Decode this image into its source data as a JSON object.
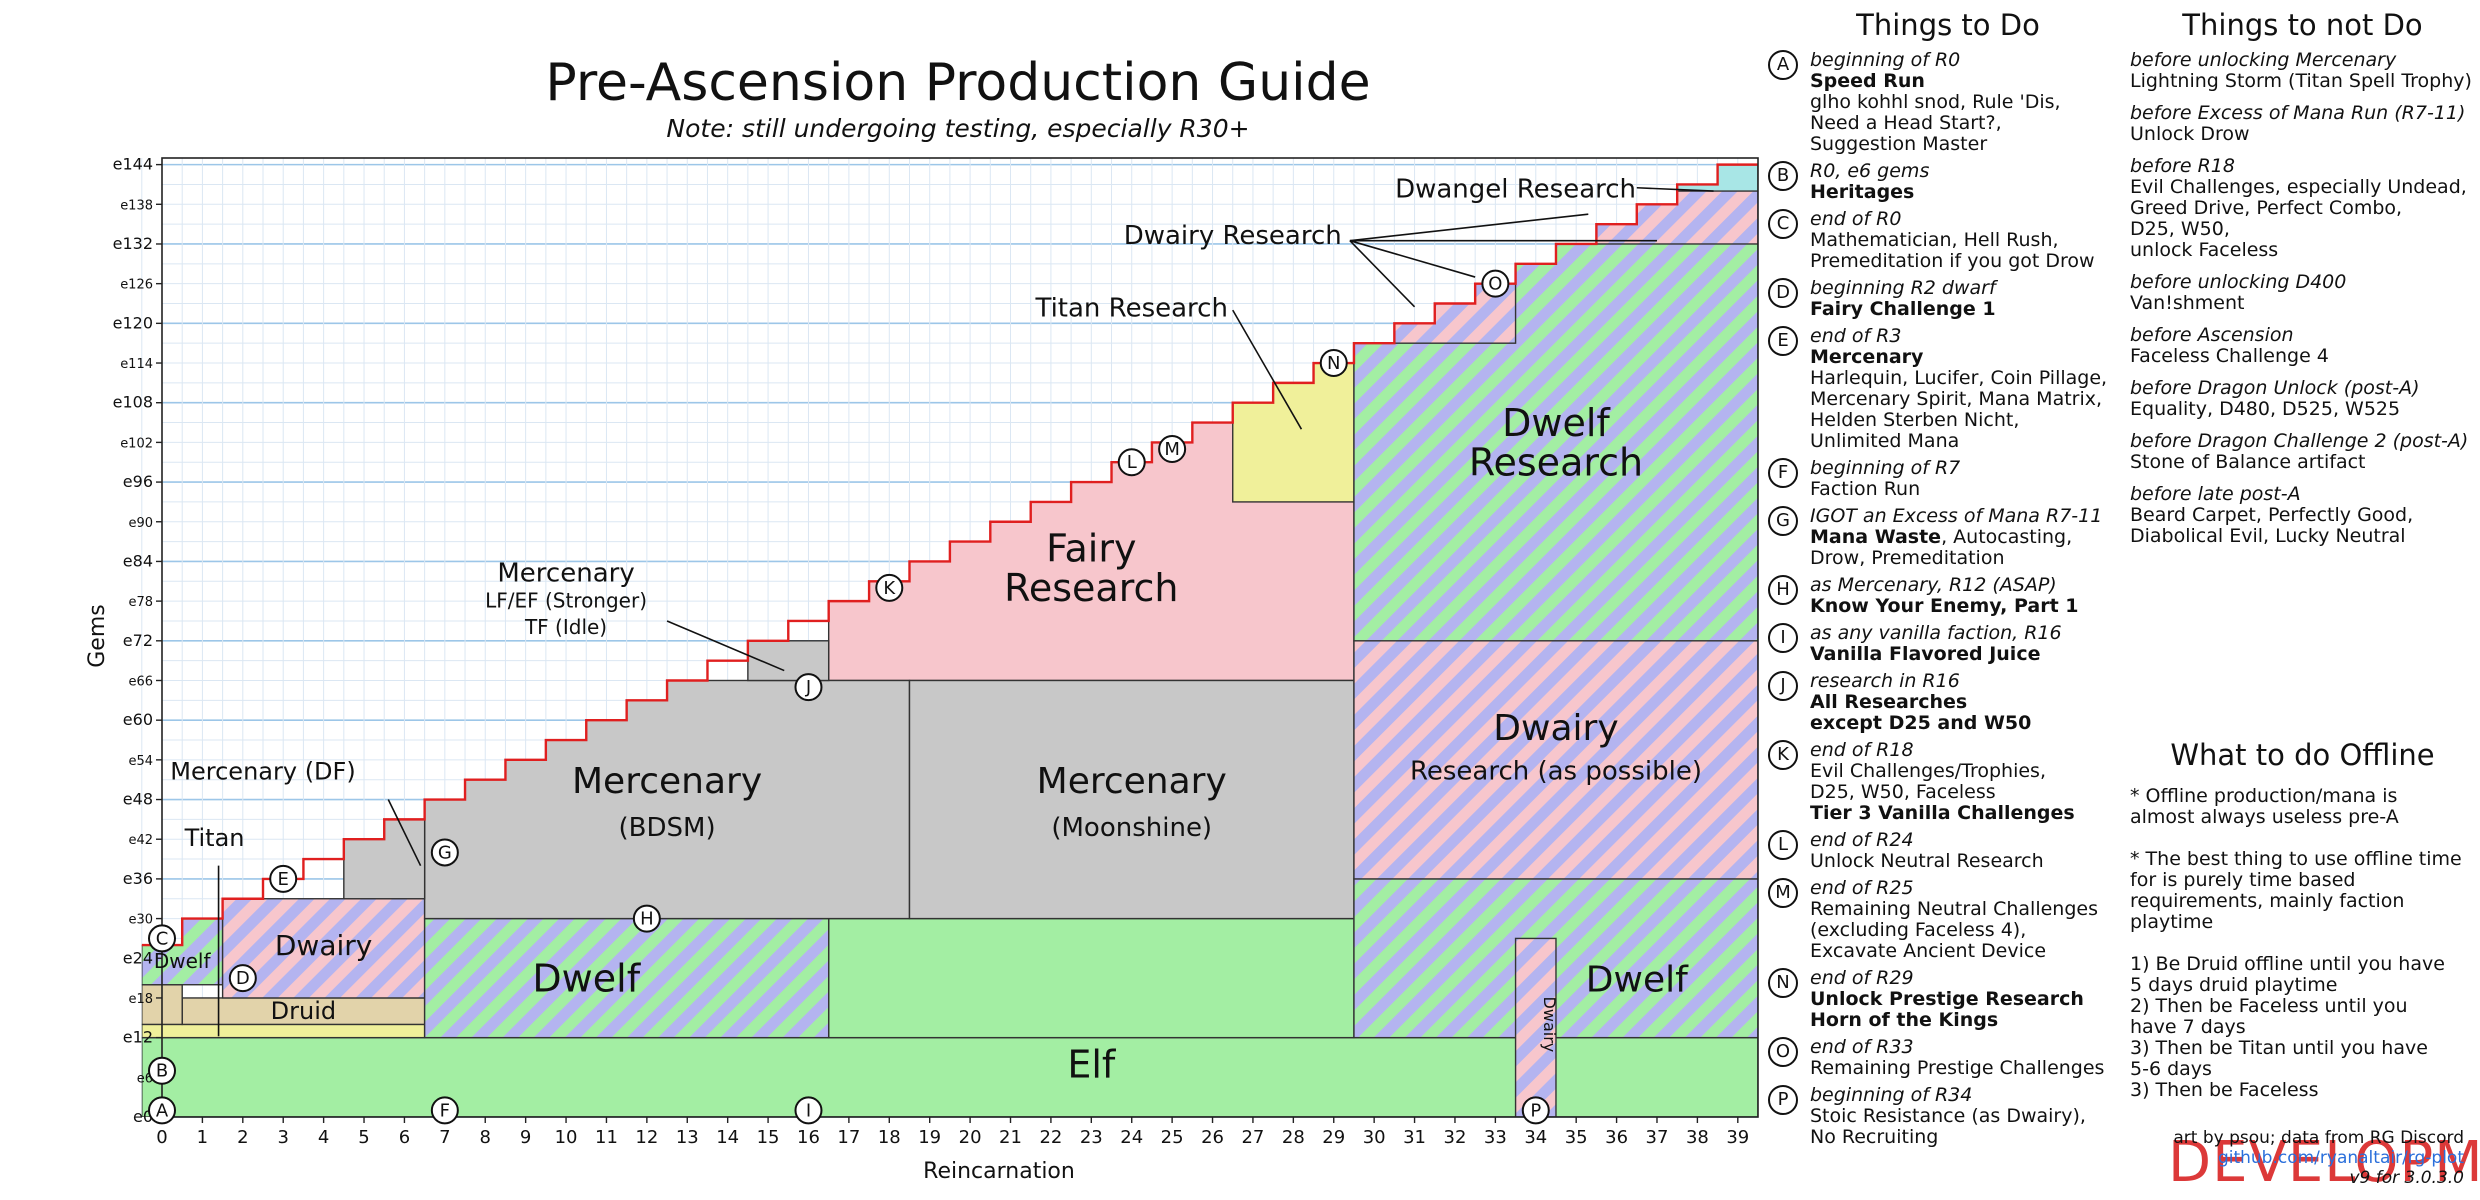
{
  "colors": {
    "elf": "#a3eea3",
    "dwelf_a": "#a3eea3",
    "dwelf_b": "#b4b4f0",
    "dwairy_a": "#f7c6cc",
    "dwairy_b": "#b4b4f0",
    "mercenary": "#c8c8c8",
    "fairy": "#f7c6cc",
    "titan": "#f0f09a",
    "druid": "#e2d3aa",
    "dwangel": "#a8e6e6",
    "step_line": "#e01f1f",
    "grid_major": "#9cc6e8",
    "grid_minor": "#dbe7f3",
    "dev_stamp": "#d81e1e",
    "link": "#2a6fdb"
  },
  "chart_data": {
    "type": "area",
    "title": "Pre-Ascension Production Guide",
    "subtitle": "Note: still undergoing testing, especially R30+",
    "xlabel": "Reincarnation",
    "ylabel": "Gems",
    "xlim": [
      0,
      39.5
    ],
    "ylim": [
      0,
      145
    ],
    "x_ticks": [
      0,
      1,
      2,
      3,
      4,
      5,
      6,
      7,
      8,
      9,
      10,
      11,
      12,
      13,
      14,
      15,
      16,
      17,
      18,
      19,
      20,
      21,
      22,
      23,
      24,
      25,
      26,
      27,
      28,
      29,
      30,
      31,
      32,
      33,
      34,
      35,
      36,
      37,
      38,
      39
    ],
    "y_ticks": [
      {
        "v": 0,
        "label": "e0",
        "major": true
      },
      {
        "v": 6,
        "label": "e6",
        "major": false
      },
      {
        "v": 12,
        "label": "e12",
        "major": true
      },
      {
        "v": 18,
        "label": "e18",
        "major": false
      },
      {
        "v": 24,
        "label": "e24",
        "major": true
      },
      {
        "v": 30,
        "label": "e30",
        "major": false
      },
      {
        "v": 36,
        "label": "e36",
        "major": true
      },
      {
        "v": 42,
        "label": "e42",
        "major": false
      },
      {
        "v": 48,
        "label": "e48",
        "major": true
      },
      {
        "v": 54,
        "label": "e54",
        "major": false
      },
      {
        "v": 60,
        "label": "e60",
        "major": true
      },
      {
        "v": 66,
        "label": "e66",
        "major": false
      },
      {
        "v": 72,
        "label": "e72",
        "major": true
      },
      {
        "v": 78,
        "label": "e78",
        "major": false
      },
      {
        "v": 84,
        "label": "e84",
        "major": true
      },
      {
        "v": 90,
        "label": "e90",
        "major": false
      },
      {
        "v": 96,
        "label": "e96",
        "major": true
      },
      {
        "v": 102,
        "label": "e102",
        "major": false
      },
      {
        "v": 108,
        "label": "e108",
        "major": true
      },
      {
        "v": 114,
        "label": "e114",
        "major": false
      },
      {
        "v": 120,
        "label": "e120",
        "major": true
      },
      {
        "v": 126,
        "label": "e126",
        "major": false
      },
      {
        "v": 132,
        "label": "e132",
        "major": true
      },
      {
        "v": 138,
        "label": "e138",
        "major": false
      },
      {
        "v": 144,
        "label": "e144",
        "major": true
      }
    ],
    "grid": true,
    "max_gems_step": [
      [
        -0.5,
        26
      ],
      [
        0.5,
        30
      ],
      [
        1.5,
        33
      ],
      [
        2.5,
        36
      ],
      [
        3.5,
        39
      ],
      [
        4.5,
        42
      ],
      [
        5.5,
        45
      ],
      [
        6.5,
        48
      ],
      [
        7.5,
        51
      ],
      [
        8.5,
        54
      ],
      [
        9.5,
        57
      ],
      [
        10.5,
        60
      ],
      [
        11.5,
        63
      ],
      [
        12.5,
        66
      ],
      [
        13.5,
        69
      ],
      [
        14.5,
        72
      ],
      [
        15.5,
        75
      ],
      [
        16.5,
        78
      ],
      [
        17.5,
        81
      ],
      [
        18.5,
        84
      ],
      [
        19.5,
        87
      ],
      [
        20.5,
        90
      ],
      [
        21.5,
        93
      ],
      [
        22.5,
        96
      ],
      [
        23.5,
        99
      ],
      [
        24.5,
        102
      ],
      [
        25.5,
        105
      ],
      [
        26.5,
        108
      ],
      [
        27.5,
        111
      ],
      [
        28.5,
        114
      ],
      [
        29.5,
        117
      ],
      [
        30.5,
        120
      ],
      [
        31.5,
        123
      ],
      [
        32.5,
        126
      ],
      [
        33.5,
        129
      ],
      [
        34.5,
        132
      ],
      [
        35.5,
        135
      ],
      [
        36.5,
        138
      ],
      [
        37.5,
        141
      ],
      [
        38.5,
        144
      ],
      [
        39.5,
        144
      ]
    ],
    "regions": [
      {
        "id": "elf",
        "name": "Elf",
        "color": "elf",
        "x": [
          -0.5,
          39.5
        ],
        "y": [
          0,
          12
        ]
      },
      {
        "id": "elf-mid",
        "name": "",
        "color": "elf",
        "x": [
          16.5,
          29.5
        ],
        "y": [
          12,
          30
        ]
      },
      {
        "id": "titan-low",
        "name": "",
        "color": "titan",
        "x": [
          -0.5,
          6.5
        ],
        "y": [
          12,
          14
        ]
      },
      {
        "id": "druid",
        "name": "Druid",
        "color": "druid",
        "x": [
          0.5,
          6.5
        ],
        "y": [
          14,
          18
        ]
      },
      {
        "id": "druid-left",
        "name": "",
        "color": "druid",
        "x": [
          -0.5,
          0.5
        ],
        "y": [
          14,
          20
        ]
      },
      {
        "id": "dwelf-r0",
        "name": "Dwelf",
        "color": "dwelf",
        "x": [
          -0.5,
          1.5
        ],
        "y": [
          20,
          30
        ]
      },
      {
        "id": "dwairy-early",
        "name": "Dwairy",
        "color": "dwairy",
        "x": [
          1.5,
          6.5
        ],
        "y": [
          18,
          33
        ]
      },
      {
        "id": "dwelf-mid",
        "name": "Dwelf",
        "color": "dwelf",
        "x": [
          6.5,
          16.5
        ],
        "y": [
          12,
          30
        ]
      },
      {
        "id": "merc-bdsm",
        "name": "Mercenary",
        "sub": "(BDSM)",
        "color": "mercenary",
        "x": [
          6.5,
          18.5
        ],
        "y": [
          30,
          66
        ]
      },
      {
        "id": "merc-moon",
        "name": "Mercenary",
        "sub": "(Moonshine)",
        "color": "mercenary",
        "x": [
          18.5,
          29.5
        ],
        "y": [
          30,
          66
        ]
      },
      {
        "id": "fairy",
        "name": "Fairy",
        "sub": "Research",
        "color": "fairy",
        "x": [
          16.5,
          29.5
        ],
        "y": [
          66,
          117
        ]
      },
      {
        "id": "titan-research",
        "name": "",
        "color": "titan",
        "x": [
          26.5,
          29.5
        ],
        "y": [
          93,
          114
        ]
      },
      {
        "id": "dwelf-bottom",
        "name": "Dwelf",
        "color": "dwelf",
        "x": [
          29.5,
          39.5
        ],
        "y": [
          12,
          36
        ]
      },
      {
        "id": "dwairy-research",
        "name": "Dwairy",
        "sub": "Research (as possible)",
        "color": "dwairy",
        "x": [
          29.5,
          39.5
        ],
        "y": [
          36,
          72
        ]
      },
      {
        "id": "dwelf-research",
        "name": "Dwelf",
        "sub": "Research",
        "color": "dwelf",
        "x": [
          29.5,
          39.5
        ],
        "y": [
          72,
          129
        ]
      },
      {
        "id": "dwairy-col",
        "name": "Dwairy",
        "color": "dwairy",
        "x": [
          33.5,
          34.5
        ],
        "y": [
          0,
          27
        ]
      },
      {
        "id": "dwangel",
        "name": "",
        "color": "dwangel",
        "x": [
          37.5,
          39.5
        ],
        "y": [
          139,
          144
        ]
      }
    ],
    "annotations": [
      {
        "text": "Titan Research",
        "at": [
          24,
          121
        ]
      },
      {
        "text": "Dwairy Research",
        "at": [
          26.5,
          132
        ]
      },
      {
        "text": "Dwangel Research",
        "at": [
          33.5,
          139
        ]
      },
      {
        "text": "Mercenary",
        "at": [
          10,
          81
        ]
      },
      {
        "text": "LF/EF (Stronger)",
        "at": [
          10,
          77
        ]
      },
      {
        "text": "TF (Idle)",
        "at": [
          10,
          73
        ]
      },
      {
        "text": "Mercenary (DF)",
        "at": [
          2.5,
          51
        ]
      },
      {
        "text": "Titan",
        "at": [
          1.3,
          41
        ]
      }
    ],
    "milestones": [
      {
        "label": "A",
        "x": 0,
        "y": 1
      },
      {
        "label": "B",
        "x": 0,
        "y": 7
      },
      {
        "label": "C",
        "x": 0,
        "y": 27
      },
      {
        "label": "D",
        "x": 2,
        "y": 21
      },
      {
        "label": "E",
        "x": 3,
        "y": 36
      },
      {
        "label": "F",
        "x": 7,
        "y": 1
      },
      {
        "label": "G",
        "x": 7,
        "y": 40
      },
      {
        "label": "H",
        "x": 12,
        "y": 30
      },
      {
        "label": "I",
        "x": 16,
        "y": 1
      },
      {
        "label": "J",
        "x": 16,
        "y": 65
      },
      {
        "label": "K",
        "x": 18,
        "y": 80
      },
      {
        "label": "L",
        "x": 24,
        "y": 99
      },
      {
        "label": "M",
        "x": 25,
        "y": 101
      },
      {
        "label": "N",
        "x": 29,
        "y": 114
      },
      {
        "label": "O",
        "x": 33,
        "y": 126
      },
      {
        "label": "P",
        "x": 34,
        "y": 1
      }
    ]
  },
  "things_to_do": {
    "title": "Things to Do",
    "items": [
      {
        "badge": "A",
        "when": "beginning of R0",
        "bold": "Speed Run",
        "text": "glho kohhl snod, Rule 'Dis,\nNeed a Head Start?,\nSuggestion Master"
      },
      {
        "badge": "B",
        "when": "R0, e6 gems",
        "bold": "Heritages",
        "text": ""
      },
      {
        "badge": "C",
        "when": "end of R0",
        "bold": "",
        "text": "Mathematician, Hell Rush,\nPremeditation if you got Drow"
      },
      {
        "badge": "D",
        "when": "beginning R2 dwarf",
        "bold": "Fairy Challenge 1",
        "text": ""
      },
      {
        "badge": "E",
        "when": "end of R3",
        "bold": "Mercenary",
        "text": "Harlequin, Lucifer, Coin Pillage,\nMercenary Spirit, Mana Matrix,\nHelden Sterben Nicht,\nUnlimited Mana"
      },
      {
        "badge": "F",
        "when": "beginning of R7",
        "bold": "",
        "text": "Faction Run"
      },
      {
        "badge": "G",
        "when": "IGOT an Excess of Mana R7-11",
        "rich_bold": "Mana Waste",
        "rich_rest": ", Autocasting,",
        "text": "Drow, Premeditation"
      },
      {
        "badge": "H",
        "when": "as Mercenary, R12 (ASAP)",
        "bold": "Know Your Enemy, Part 1",
        "text": ""
      },
      {
        "badge": "I",
        "when": "as any vanilla faction, R16",
        "bold": "Vanilla Flavored Juice",
        "text": ""
      },
      {
        "badge": "J",
        "when": "research in R16",
        "bold": "All Researches\nexcept D25 and W50",
        "text": ""
      },
      {
        "badge": "K",
        "when": "end of R18",
        "bold": "",
        "text": "Evil Challenges/Trophies,\nD25, W50, Faceless",
        "bold_after": "Tier 3 Vanilla Challenges"
      },
      {
        "badge": "L",
        "when": "end of R24",
        "bold": "",
        "text": "Unlock Neutral Research"
      },
      {
        "badge": "M",
        "when": "end of R25",
        "bold": "",
        "text": "Remaining Neutral Challenges\n(excluding Faceless 4),\nExcavate Ancient Device"
      },
      {
        "badge": "N",
        "when": "end of R29",
        "bold": "Unlock Prestige Research\nHorn of the Kings",
        "text": ""
      },
      {
        "badge": "O",
        "when": "end of R33",
        "bold": "",
        "text": "Remaining Prestige Challenges"
      },
      {
        "badge": "P",
        "when": "beginning of R34",
        "bold": "",
        "text": "Stoic Resistance (as Dwairy),\nNo Recruiting"
      }
    ]
  },
  "things_not_to_do": {
    "title": "Things to not Do",
    "items": [
      {
        "when": "before unlocking Mercenary",
        "what": "Lightning Storm (Titan Spell Trophy)"
      },
      {
        "when": "before Excess of Mana Run (R7-11)",
        "what": "Unlock Drow"
      },
      {
        "when": "before R18",
        "what": "Evil Challenges, especially Undead,\nGreed Drive, Perfect Combo,\nD25, W50,\nunlock Faceless"
      },
      {
        "when": "before unlocking D400",
        "what": "Van!shment"
      },
      {
        "when": "before Ascension",
        "what": "Faceless Challenge 4"
      },
      {
        "when": "before Dragon Unlock (post-A)",
        "what": "Equality, D480, D525, W525"
      },
      {
        "when": "before Dragon Challenge 2 (post-A)",
        "what": "Stone of Balance artifact"
      },
      {
        "when": "before late post-A",
        "what": "Beard Carpet, Perfectly Good,\nDiabolical Evil, Lucky Neutral"
      }
    ]
  },
  "offline": {
    "title": "What to do Offline",
    "text": "* Offline production/mana is\nalmost always useless pre-A\n\n* The best thing to use offline time\nfor is purely time based\nrequirements, mainly faction\nplaytime\n\n   1) Be Druid offline until you have\n5 days druid playtime\n   2) Then be Faceless until you\nhave 7 days\n   3) Then be Titan until you have\n5-6 days\n   3) Then be Faceless"
  },
  "credits": {
    "line1": "art by psou; data from RG Discord",
    "line2": "github.com/ryanaltair/rg-plot",
    "line3": "v9 for 3.0.3.0"
  },
  "watermark": {
    "text": "DEVELOPMENT"
  },
  "icons": {
    "milestone": "circled-letter-icon"
  }
}
